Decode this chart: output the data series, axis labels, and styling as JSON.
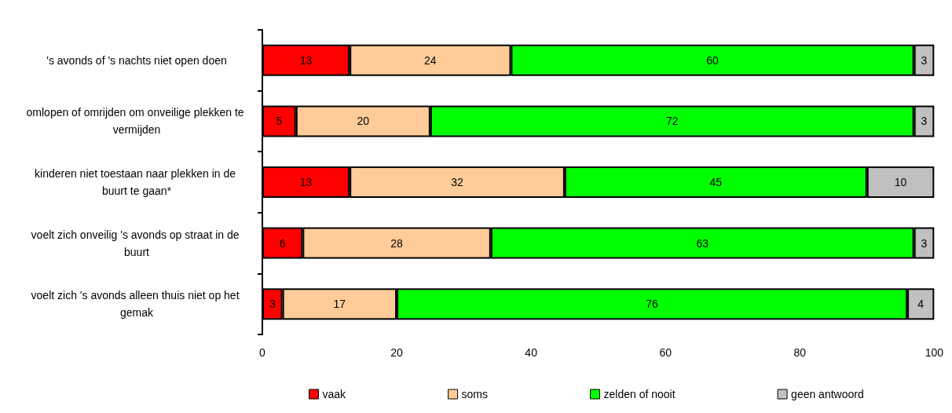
{
  "chart_data": {
    "type": "bar",
    "orientation": "horizontal",
    "stacked": true,
    "data_labels": true,
    "grid": false,
    "legend": "bottom",
    "categories": [
      "'s avonds of 's nachts niet open doen",
      "omlopen of omrijden om onveilige plekken te vermijden",
      "kinderen niet toestaan naar plekken in de buurt te gaan*",
      "voelt zich onveilig 's avonds op straat in de buurt",
      "voelt zich 's avonds alleen thuis niet op het gemak"
    ],
    "series": [
      {
        "name": "vaak",
        "color": "#ff0000",
        "values": [
          13,
          5,
          13,
          6,
          3
        ]
      },
      {
        "name": "soms",
        "color": "#ffcc99",
        "values": [
          24,
          20,
          32,
          28,
          17
        ]
      },
      {
        "name": "zelden of nooit",
        "color": "#00ff00",
        "values": [
          60,
          72,
          45,
          63,
          76
        ]
      },
      {
        "name": "geen antwoord",
        "color": "#c0c0c0",
        "values": [
          3,
          3,
          10,
          3,
          4
        ]
      }
    ],
    "xlim": [
      0,
      100
    ],
    "xticks": [
      0,
      20,
      40,
      60,
      80,
      100
    ]
  }
}
